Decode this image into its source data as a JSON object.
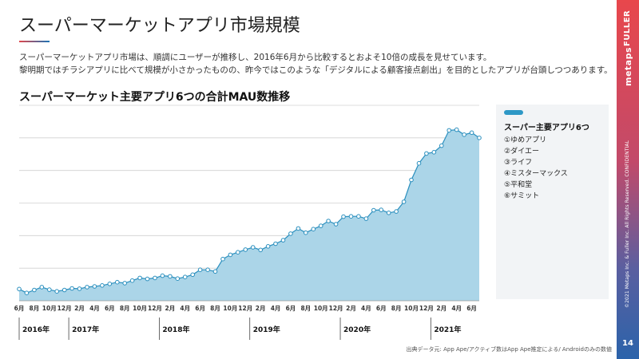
{
  "page": {
    "title": "スーパーマーケットアプリ市場規模",
    "description": [
      "スーパーマーケットアプリ市場は、順調にユーザーが推移し、2016年6月から比較するとおよそ10倍の成長を見せています。",
      "黎明期ではチラシアプリに比べて規模が小さかったものの、昨今ではこのような「デジタルによる顧客接点創出」を目的としたアプリが台頭しつつあります。"
    ],
    "chart_title": "スーパーマーケット主要アプリ6つの合計MAU数推移",
    "source_note": "出典データ元: App Ape/アクティブ数はApp Ape推定による/ Androidのみの数値",
    "page_number": "14",
    "brand_lines": [
      "metaps",
      "FULLER"
    ],
    "confidential": "©2021 Metaps Inc. & Fuller Inc. All Rights Reserved. CONFIDENTIAL"
  },
  "colors": {
    "accent": "#2e98c6",
    "area_fill": "#abd5e8",
    "side_bar_top": "#e8474c",
    "side_bar_bottom": "#2b63aa"
  },
  "chart_data": {
    "type": "area",
    "title": "スーパーマーケット主要アプリ6つの合計MAU数推移",
    "xlabel": "",
    "ylabel": "",
    "y_ticks_labeled": false,
    "grid": true,
    "legend_position": "right",
    "legend": {
      "title": "スーパー主要アプリ6つ",
      "items": [
        "①ゆめアプリ",
        "②ダイエー",
        "③ライフ",
        "④ミスターマックス",
        "⑤平和堂",
        "⑥サミット"
      ]
    },
    "x_tick_labels": [
      "6月",
      "8月",
      "10月",
      "12月",
      "2月",
      "4月",
      "6月",
      "8月",
      "10月",
      "12月",
      "2月",
      "4月",
      "6月",
      "8月",
      "10月",
      "12月",
      "2月",
      "4月",
      "6月",
      "8月",
      "10月",
      "12月",
      "2月",
      "4月",
      "6月",
      "8月",
      "10月",
      "12月",
      "2月",
      "4月",
      "6月"
    ],
    "year_labels": [
      "2016年",
      "2017年",
      "2018年",
      "2019年",
      "2020年",
      "2021年"
    ],
    "start": "2016-06",
    "months": [
      "2016-06",
      "2016-07",
      "2016-08",
      "2016-09",
      "2016-10",
      "2016-11",
      "2016-12",
      "2017-01",
      "2017-02",
      "2017-03",
      "2017-04",
      "2017-05",
      "2017-06",
      "2017-07",
      "2017-08",
      "2017-09",
      "2017-10",
      "2017-11",
      "2017-12",
      "2018-01",
      "2018-02",
      "2018-03",
      "2018-04",
      "2018-05",
      "2018-06",
      "2018-07",
      "2018-08",
      "2018-09",
      "2018-10",
      "2018-11",
      "2018-12",
      "2019-01",
      "2019-02",
      "2019-03",
      "2019-04",
      "2019-05",
      "2019-06",
      "2019-07",
      "2019-08",
      "2019-09",
      "2019-10",
      "2019-11",
      "2019-12",
      "2020-01",
      "2020-02",
      "2020-03",
      "2020-04",
      "2020-05",
      "2020-06",
      "2020-07",
      "2020-08",
      "2020-09",
      "2020-10",
      "2020-11",
      "2020-12",
      "2021-01",
      "2021-02",
      "2021-03",
      "2021-04",
      "2021-05",
      "2021-06",
      "2021-07"
    ],
    "values": [
      0.36,
      0.24,
      0.33,
      0.42,
      0.34,
      0.29,
      0.33,
      0.38,
      0.37,
      0.42,
      0.44,
      0.47,
      0.52,
      0.57,
      0.54,
      0.62,
      0.7,
      0.67,
      0.7,
      0.77,
      0.75,
      0.68,
      0.73,
      0.8,
      0.95,
      0.95,
      0.9,
      1.28,
      1.41,
      1.49,
      1.57,
      1.64,
      1.56,
      1.67,
      1.75,
      1.86,
      2.06,
      2.22,
      2.09,
      2.2,
      2.3,
      2.45,
      2.35,
      2.58,
      2.59,
      2.59,
      2.52,
      2.78,
      2.79,
      2.7,
      2.74,
      3.04,
      3.71,
      4.22,
      4.52,
      4.56,
      4.76,
      5.23,
      5.25,
      5.1,
      5.16,
      5.0
    ],
    "ylim": [
      0,
      6
    ],
    "y_grid_values": [
      0,
      1,
      2,
      3,
      4,
      5,
      6
    ]
  }
}
